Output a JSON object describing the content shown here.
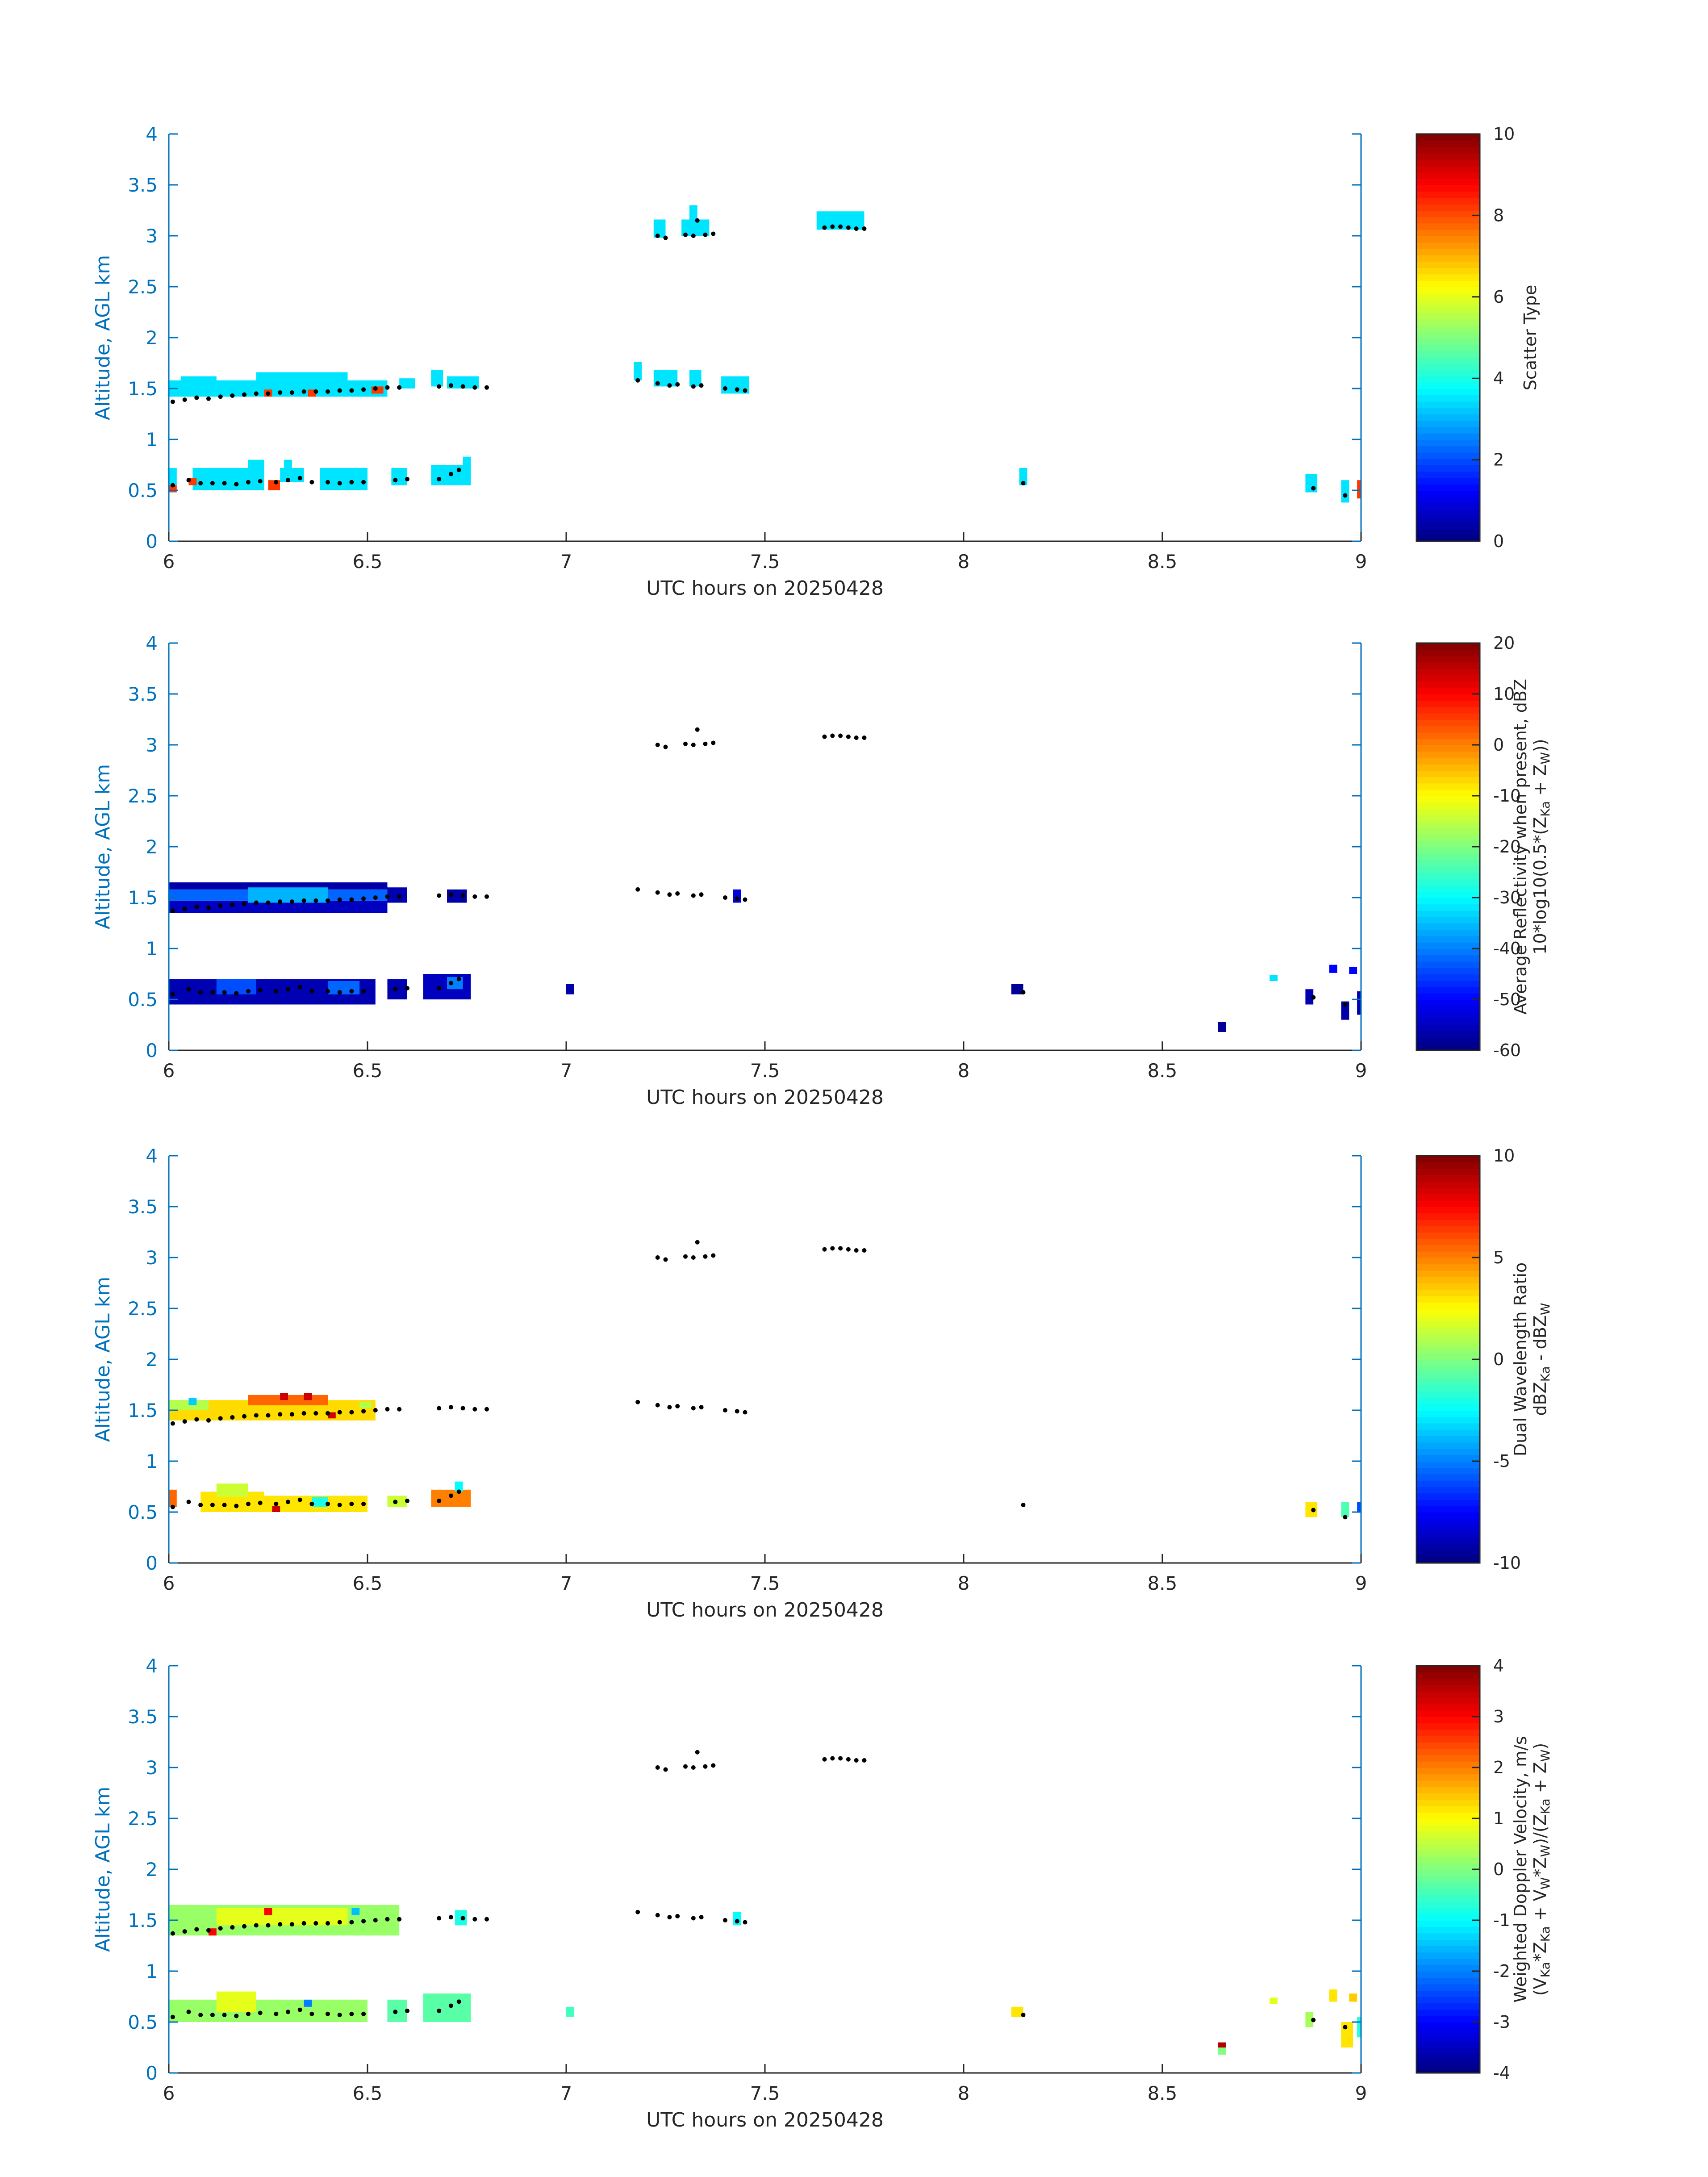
{
  "chart_data": [
    {
      "type": "heatmap",
      "title": "",
      "xlabel": "UTC hours on 20250428",
      "ylabel": "Altitude, AGL km",
      "xlim": [
        6,
        9
      ],
      "ylim": [
        0,
        4
      ],
      "xticks": [
        "6",
        "6.5",
        "7",
        "7.5",
        "8",
        "8.5",
        "9"
      ],
      "yticks": [
        "0",
        "0.5",
        "1",
        "1.5",
        "2",
        "2.5",
        "3",
        "3.5",
        "4"
      ],
      "colorbar": {
        "label_lines": [
          "Scatter Type"
        ],
        "range": [
          0,
          10
        ],
        "ticks": [
          "0",
          "2",
          "4",
          "6",
          "8",
          "10"
        ]
      },
      "cells": [
        {
          "x0": 6.0,
          "x1": 6.55,
          "y0": 1.42,
          "y1": 1.58,
          "value": 3.5
        },
        {
          "x0": 6.03,
          "x1": 6.12,
          "y0": 1.55,
          "y1": 1.62,
          "value": 3.5
        },
        {
          "x0": 6.22,
          "x1": 6.45,
          "y0": 1.55,
          "y1": 1.66,
          "value": 3.5
        },
        {
          "x0": 6.58,
          "x1": 6.62,
          "y0": 1.5,
          "y1": 1.6,
          "value": 3.5
        },
        {
          "x0": 6.66,
          "x1": 6.69,
          "y0": 1.52,
          "y1": 1.68,
          "value": 3.5
        },
        {
          "x0": 6.7,
          "x1": 6.78,
          "y0": 1.5,
          "y1": 1.62,
          "value": 3.5
        },
        {
          "x0": 6.0,
          "x1": 6.02,
          "y0": 0.55,
          "y1": 0.72,
          "value": 3.5
        },
        {
          "x0": 6.06,
          "x1": 6.24,
          "y0": 0.5,
          "y1": 0.72,
          "value": 3.5
        },
        {
          "x0": 6.2,
          "x1": 6.24,
          "y0": 0.7,
          "y1": 0.8,
          "value": 3.5
        },
        {
          "x0": 6.28,
          "x1": 6.34,
          "y0": 0.58,
          "y1": 0.72,
          "value": 3.5
        },
        {
          "x0": 6.29,
          "x1": 6.31,
          "y0": 0.72,
          "y1": 0.8,
          "value": 3.5
        },
        {
          "x0": 6.38,
          "x1": 6.5,
          "y0": 0.5,
          "y1": 0.72,
          "value": 3.5
        },
        {
          "x0": 6.56,
          "x1": 6.6,
          "y0": 0.55,
          "y1": 0.72,
          "value": 3.5
        },
        {
          "x0": 6.66,
          "x1": 6.74,
          "y0": 0.55,
          "y1": 0.75,
          "value": 3.5
        },
        {
          "x0": 6.74,
          "x1": 6.76,
          "y0": 0.55,
          "y1": 0.83,
          "value": 3.5
        },
        {
          "x0": 7.22,
          "x1": 7.25,
          "y0": 2.98,
          "y1": 3.16,
          "value": 3.5
        },
        {
          "x0": 7.29,
          "x1": 7.36,
          "y0": 3.0,
          "y1": 3.16,
          "value": 3.5
        },
        {
          "x0": 7.31,
          "x1": 7.33,
          "y0": 3.16,
          "y1": 3.3,
          "value": 3.5
        },
        {
          "x0": 7.63,
          "x1": 7.75,
          "y0": 3.06,
          "y1": 3.24,
          "value": 3.5
        },
        {
          "x0": 7.17,
          "x1": 7.19,
          "y0": 1.58,
          "y1": 1.76,
          "value": 3.5
        },
        {
          "x0": 7.22,
          "x1": 7.28,
          "y0": 1.52,
          "y1": 1.68,
          "value": 3.5
        },
        {
          "x0": 7.31,
          "x1": 7.34,
          "y0": 1.52,
          "y1": 1.68,
          "value": 3.5
        },
        {
          "x0": 7.39,
          "x1": 7.46,
          "y0": 1.45,
          "y1": 1.62,
          "value": 3.5
        },
        {
          "x0": 8.14,
          "x1": 8.16,
          "y0": 0.55,
          "y1": 0.72,
          "value": 3.5
        },
        {
          "x0": 8.86,
          "x1": 8.89,
          "y0": 0.48,
          "y1": 0.66,
          "value": 3.5
        },
        {
          "x0": 8.95,
          "x1": 8.97,
          "y0": 0.38,
          "y1": 0.6,
          "value": 3.5
        },
        {
          "x0": 6.0,
          "x1": 6.02,
          "y0": 0.48,
          "y1": 0.55,
          "value": 8.2
        },
        {
          "x0": 6.05,
          "x1": 6.07,
          "y0": 0.55,
          "y1": 0.62,
          "value": 8.2
        },
        {
          "x0": 6.24,
          "x1": 6.26,
          "y0": 1.42,
          "y1": 1.49,
          "value": 8.2
        },
        {
          "x0": 6.25,
          "x1": 6.28,
          "y0": 0.5,
          "y1": 0.6,
          "value": 8.2
        },
        {
          "x0": 6.35,
          "x1": 6.37,
          "y0": 1.42,
          "y1": 1.49,
          "value": 8.2
        },
        {
          "x0": 6.51,
          "x1": 6.54,
          "y0": 1.45,
          "y1": 1.52,
          "value": 8.2
        },
        {
          "x0": 8.99,
          "x1": 9.0,
          "y0": 0.42,
          "y1": 0.6,
          "value": 8.2
        }
      ]
    },
    {
      "type": "heatmap",
      "title": "",
      "xlabel": "UTC hours on 20250428",
      "ylabel": "Altitude, AGL km",
      "xlim": [
        6,
        9
      ],
      "ylim": [
        0,
        4
      ],
      "xticks": [
        "6",
        "6.5",
        "7",
        "7.5",
        "8",
        "8.5",
        "9"
      ],
      "yticks": [
        "0",
        "0.5",
        "1",
        "1.5",
        "2",
        "2.5",
        "3",
        "3.5",
        "4"
      ],
      "colorbar": {
        "label_lines": [
          "Average Reflectivity when present, dBZ",
          "10*log10(0.5*(Z_Ka + Z_W))"
        ],
        "range": [
          -60,
          20
        ],
        "ticks": [
          "-60",
          "-50",
          "-40",
          "-30",
          "-20",
          "-10",
          "0",
          "10",
          "20"
        ]
      },
      "cells": [
        {
          "x0": 6.0,
          "x1": 6.55,
          "y0": 1.47,
          "y1": 1.58,
          "value": -42
        },
        {
          "x0": 6.0,
          "x1": 6.55,
          "y0": 1.35,
          "y1": 1.47,
          "value": -55
        },
        {
          "x0": 6.0,
          "x1": 6.55,
          "y0": 1.58,
          "y1": 1.65,
          "value": -57
        },
        {
          "x0": 6.2,
          "x1": 6.4,
          "y0": 1.45,
          "y1": 1.6,
          "value": -36
        },
        {
          "x0": 6.55,
          "x1": 6.6,
          "y0": 1.45,
          "y1": 1.6,
          "value": -56
        },
        {
          "x0": 6.7,
          "x1": 6.75,
          "y0": 1.45,
          "y1": 1.58,
          "value": -57
        },
        {
          "x0": 7.42,
          "x1": 7.44,
          "y0": 1.45,
          "y1": 1.58,
          "value": -53
        },
        {
          "x0": 6.0,
          "x1": 6.52,
          "y0": 0.45,
          "y1": 0.7,
          "value": -56
        },
        {
          "x0": 6.12,
          "x1": 6.22,
          "y0": 0.55,
          "y1": 0.7,
          "value": -44
        },
        {
          "x0": 6.4,
          "x1": 6.48,
          "y0": 0.55,
          "y1": 0.68,
          "value": -42
        },
        {
          "x0": 6.55,
          "x1": 6.6,
          "y0": 0.5,
          "y1": 0.7,
          "value": -56
        },
        {
          "x0": 6.64,
          "x1": 6.76,
          "y0": 0.5,
          "y1": 0.75,
          "value": -55
        },
        {
          "x0": 6.7,
          "x1": 6.74,
          "y0": 0.6,
          "y1": 0.72,
          "value": -40
        },
        {
          "x0": 7.0,
          "x1": 7.02,
          "y0": 0.55,
          "y1": 0.65,
          "value": -57
        },
        {
          "x0": 8.12,
          "x1": 8.15,
          "y0": 0.55,
          "y1": 0.65,
          "value": -58
        },
        {
          "x0": 8.64,
          "x1": 8.66,
          "y0": 0.18,
          "y1": 0.28,
          "value": -58
        },
        {
          "x0": 8.77,
          "x1": 8.79,
          "y0": 0.68,
          "y1": 0.74,
          "value": -32
        },
        {
          "x0": 8.86,
          "x1": 8.88,
          "y0": 0.45,
          "y1": 0.6,
          "value": -56
        },
        {
          "x0": 8.92,
          "x1": 8.94,
          "y0": 0.76,
          "y1": 0.84,
          "value": -50
        },
        {
          "x0": 8.95,
          "x1": 8.97,
          "y0": 0.3,
          "y1": 0.48,
          "value": -57
        },
        {
          "x0": 8.97,
          "x1": 8.99,
          "y0": 0.75,
          "y1": 0.82,
          "value": -50
        },
        {
          "x0": 8.99,
          "x1": 9.0,
          "y0": 0.35,
          "y1": 0.58,
          "value": -56
        }
      ]
    },
    {
      "type": "heatmap",
      "title": "",
      "xlabel": "UTC hours on 20250428",
      "ylabel": "Altitude, AGL km",
      "xlim": [
        6,
        9
      ],
      "ylim": [
        0,
        4
      ],
      "xticks": [
        "6",
        "6.5",
        "7",
        "7.5",
        "8",
        "8.5",
        "9"
      ],
      "yticks": [
        "0",
        "0.5",
        "1",
        "1.5",
        "2",
        "2.5",
        "3",
        "3.5",
        "4"
      ],
      "colorbar": {
        "label_lines": [
          "Dual Wavelength Ratio",
          "dBZ_Ka - dBZ_W"
        ],
        "range": [
          -10,
          10
        ],
        "ticks": [
          "-10",
          "-5",
          "0",
          "5",
          "10"
        ]
      },
      "cells": [
        {
          "x0": 6.0,
          "x1": 6.52,
          "y0": 1.4,
          "y1": 1.6,
          "value": 3.2
        },
        {
          "x0": 6.2,
          "x1": 6.4,
          "y0": 1.55,
          "y1": 1.65,
          "value": 5.5
        },
        {
          "x0": 6.0,
          "x1": 6.1,
          "y0": 1.5,
          "y1": 1.6,
          "value": 1.0
        },
        {
          "x0": 6.05,
          "x1": 6.07,
          "y0": 1.55,
          "y1": 1.62,
          "value": -3.5
        },
        {
          "x0": 6.28,
          "x1": 6.3,
          "y0": 1.6,
          "y1": 1.67,
          "value": 8.5
        },
        {
          "x0": 6.34,
          "x1": 6.36,
          "y0": 1.6,
          "y1": 1.67,
          "value": 8.5
        },
        {
          "x0": 6.4,
          "x1": 6.42,
          "y0": 1.42,
          "y1": 1.48,
          "value": 8.5
        },
        {
          "x0": 6.48,
          "x1": 6.51,
          "y0": 1.52,
          "y1": 1.58,
          "value": 1.0
        },
        {
          "x0": 6.0,
          "x1": 6.02,
          "y0": 0.55,
          "y1": 0.72,
          "value": 5.5
        },
        {
          "x0": 6.08,
          "x1": 6.24,
          "y0": 0.5,
          "y1": 0.7,
          "value": 3.0
        },
        {
          "x0": 6.12,
          "x1": 6.2,
          "y0": 0.65,
          "y1": 0.78,
          "value": 1.5
        },
        {
          "x0": 6.24,
          "x1": 6.5,
          "y0": 0.5,
          "y1": 0.66,
          "value": 3.0
        },
        {
          "x0": 6.36,
          "x1": 6.4,
          "y0": 0.55,
          "y1": 0.65,
          "value": -2.0
        },
        {
          "x0": 6.26,
          "x1": 6.28,
          "y0": 0.5,
          "y1": 0.56,
          "value": 8.5
        },
        {
          "x0": 6.55,
          "x1": 6.6,
          "y0": 0.55,
          "y1": 0.66,
          "value": 1.5
        },
        {
          "x0": 6.66,
          "x1": 6.76,
          "y0": 0.55,
          "y1": 0.72,
          "value": 5.0
        },
        {
          "x0": 6.72,
          "x1": 6.74,
          "y0": 0.7,
          "y1": 0.8,
          "value": -2.5
        },
        {
          "x0": 8.86,
          "x1": 8.89,
          "y0": 0.45,
          "y1": 0.6,
          "value": 3.0
        },
        {
          "x0": 8.95,
          "x1": 8.97,
          "y0": 0.45,
          "y1": 0.6,
          "value": -1.0
        },
        {
          "x0": 8.99,
          "x1": 9.0,
          "y0": 0.5,
          "y1": 0.6,
          "value": -6.0
        }
      ]
    },
    {
      "type": "heatmap",
      "title": "",
      "xlabel": "UTC hours on 20250428",
      "ylabel": "Altitude, AGL km",
      "xlim": [
        6,
        9
      ],
      "ylim": [
        0,
        4
      ],
      "xticks": [
        "6",
        "6.5",
        "7",
        "7.5",
        "8",
        "8.5",
        "9"
      ],
      "yticks": [
        "0",
        "0.5",
        "1",
        "1.5",
        "2",
        "2.5",
        "3",
        "3.5",
        "4"
      ],
      "colorbar": {
        "label_lines": [
          "Weighted Doppler Velocity, m/s",
          "(V_Ka*Z_Ka + V_W*Z_W)/(Z_Ka + Z_W)"
        ],
        "range": [
          -4,
          4
        ],
        "ticks": [
          "-4",
          "-3",
          "-2",
          "-1",
          "0",
          "1",
          "2",
          "3",
          "4"
        ]
      },
      "cells": [
        {
          "x0": 6.0,
          "x1": 6.58,
          "y0": 1.35,
          "y1": 1.65,
          "value": 0.2
        },
        {
          "x0": 6.12,
          "x1": 6.45,
          "y0": 1.45,
          "y1": 1.62,
          "value": 0.8
        },
        {
          "x0": 6.24,
          "x1": 6.26,
          "y0": 1.55,
          "y1": 1.62,
          "value": 3.0
        },
        {
          "x0": 6.1,
          "x1": 6.12,
          "y0": 1.35,
          "y1": 1.42,
          "value": 3.0
        },
        {
          "x0": 6.46,
          "x1": 6.48,
          "y0": 1.55,
          "y1": 1.62,
          "value": -1.5
        },
        {
          "x0": 6.72,
          "x1": 6.75,
          "y0": 1.45,
          "y1": 1.6,
          "value": -0.8
        },
        {
          "x0": 7.42,
          "x1": 7.44,
          "y0": 1.45,
          "y1": 1.58,
          "value": -1.0
        },
        {
          "x0": 6.0,
          "x1": 6.5,
          "y0": 0.5,
          "y1": 0.72,
          "value": 0.2
        },
        {
          "x0": 6.12,
          "x1": 6.22,
          "y0": 0.6,
          "y1": 0.8,
          "value": 0.8
        },
        {
          "x0": 6.34,
          "x1": 6.36,
          "y0": 0.65,
          "y1": 0.72,
          "value": -2.0
        },
        {
          "x0": 6.55,
          "x1": 6.6,
          "y0": 0.5,
          "y1": 0.72,
          "value": -0.3
        },
        {
          "x0": 6.64,
          "x1": 6.76,
          "y0": 0.5,
          "y1": 0.78,
          "value": -0.3
        },
        {
          "x0": 7.0,
          "x1": 7.02,
          "y0": 0.55,
          "y1": 0.65,
          "value": -0.5
        },
        {
          "x0": 8.12,
          "x1": 8.15,
          "y0": 0.55,
          "y1": 0.65,
          "value": 1.2
        },
        {
          "x0": 8.64,
          "x1": 8.66,
          "y0": 0.18,
          "y1": 0.28,
          "value": 0.0
        },
        {
          "x0": 8.64,
          "x1": 8.66,
          "y0": 0.25,
          "y1": 0.3,
          "value": 3.6
        },
        {
          "x0": 8.77,
          "x1": 8.79,
          "y0": 0.68,
          "y1": 0.74,
          "value": 0.8
        },
        {
          "x0": 8.86,
          "x1": 8.88,
          "y0": 0.45,
          "y1": 0.6,
          "value": 0.3
        },
        {
          "x0": 8.92,
          "x1": 8.94,
          "y0": 0.7,
          "y1": 0.82,
          "value": 1.2
        },
        {
          "x0": 8.95,
          "x1": 8.98,
          "y0": 0.25,
          "y1": 0.5,
          "value": 1.2
        },
        {
          "x0": 8.97,
          "x1": 8.99,
          "y0": 0.7,
          "y1": 0.78,
          "value": 1.4
        },
        {
          "x0": 8.99,
          "x1": 9.0,
          "y0": 0.35,
          "y1": 0.55,
          "value": -0.7
        }
      ]
    }
  ],
  "dots": [
    [
      6.01,
      1.37
    ],
    [
      6.04,
      1.39
    ],
    [
      6.07,
      1.41
    ],
    [
      6.1,
      1.4
    ],
    [
      6.13,
      1.42
    ],
    [
      6.16,
      1.43
    ],
    [
      6.19,
      1.44
    ],
    [
      6.22,
      1.45
    ],
    [
      6.25,
      1.45
    ],
    [
      6.28,
      1.46
    ],
    [
      6.31,
      1.46
    ],
    [
      6.34,
      1.47
    ],
    [
      6.37,
      1.47
    ],
    [
      6.4,
      1.47
    ],
    [
      6.43,
      1.48
    ],
    [
      6.46,
      1.48
    ],
    [
      6.49,
      1.49
    ],
    [
      6.52,
      1.5
    ],
    [
      6.55,
      1.51
    ],
    [
      6.58,
      1.51
    ],
    [
      6.68,
      1.52
    ],
    [
      6.71,
      1.53
    ],
    [
      6.74,
      1.52
    ],
    [
      6.77,
      1.51
    ],
    [
      6.8,
      1.51
    ],
    [
      7.18,
      1.58
    ],
    [
      7.23,
      1.55
    ],
    [
      7.26,
      1.53
    ],
    [
      7.28,
      1.54
    ],
    [
      7.32,
      1.52
    ],
    [
      7.34,
      1.53
    ],
    [
      7.4,
      1.5
    ],
    [
      7.43,
      1.49
    ],
    [
      7.45,
      1.48
    ],
    [
      6.01,
      0.55
    ],
    [
      6.05,
      0.6
    ],
    [
      6.08,
      0.57
    ],
    [
      6.11,
      0.57
    ],
    [
      6.14,
      0.57
    ],
    [
      6.17,
      0.56
    ],
    [
      6.2,
      0.58
    ],
    [
      6.23,
      0.59
    ],
    [
      6.27,
      0.58
    ],
    [
      6.3,
      0.6
    ],
    [
      6.33,
      0.62
    ],
    [
      6.36,
      0.58
    ],
    [
      6.4,
      0.58
    ],
    [
      6.43,
      0.57
    ],
    [
      6.46,
      0.58
    ],
    [
      6.49,
      0.58
    ],
    [
      6.57,
      0.6
    ],
    [
      6.6,
      0.61
    ],
    [
      6.68,
      0.61
    ],
    [
      6.71,
      0.66
    ],
    [
      6.73,
      0.7
    ],
    [
      7.23,
      3.0
    ],
    [
      7.25,
      2.98
    ],
    [
      7.3,
      3.01
    ],
    [
      7.32,
      3.0
    ],
    [
      7.33,
      3.15
    ],
    [
      7.35,
      3.01
    ],
    [
      7.37,
      3.02
    ],
    [
      7.65,
      3.08
    ],
    [
      7.67,
      3.09
    ],
    [
      7.69,
      3.09
    ],
    [
      7.71,
      3.08
    ],
    [
      7.73,
      3.07
    ],
    [
      7.75,
      3.07
    ],
    [
      8.15,
      0.57
    ],
    [
      8.88,
      0.52
    ],
    [
      8.96,
      0.45
    ]
  ]
}
